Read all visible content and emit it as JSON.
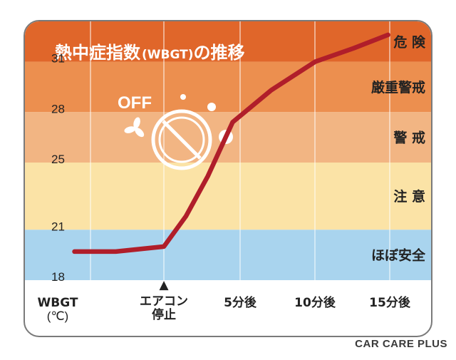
{
  "chart_data": {
    "type": "line",
    "title_main": "熱中症指数",
    "title_paren": "(WBGT)",
    "title_tail": "の推移",
    "x_axis_label_line1": "WBGT",
    "x_axis_label_line2": "(℃)",
    "categories": [
      {
        "label": "エアコン停止",
        "line1": "エアコン",
        "line2": "停止",
        "marker": "▲"
      },
      {
        "label": "5分後"
      },
      {
        "label": "10分後"
      },
      {
        "label": "15分後"
      }
    ],
    "y_ticks": [
      "31",
      "28",
      "25",
      "21",
      "18"
    ],
    "y_tick_values": [
      31,
      28,
      25,
      21,
      18
    ],
    "ylim": [
      18,
      33.4
    ],
    "bands": [
      {
        "label": "危 険",
        "from": 31,
        "to": 33.4,
        "color": "#e0662a"
      },
      {
        "label": "厳重警戒",
        "from": 28,
        "to": 31,
        "color": "#ec8f4f"
      },
      {
        "label": "警 戒",
        "from": 25,
        "to": 28,
        "color": "#f2b583"
      },
      {
        "label": "注 意",
        "from": 21,
        "to": 25,
        "color": "#fbe3a6"
      },
      {
        "label": "ほぼ安全",
        "from": 18,
        "to": 21,
        "color": "#a9d4ee"
      }
    ],
    "series": [
      {
        "color": "#b01e2a",
        "x": [
          -6.5,
          -3.5,
          0,
          1.6,
          3.2,
          5.0,
          7.8,
          11.0,
          13.8,
          16.3
        ],
        "y": [
          19.7,
          19.7,
          20.0,
          21.8,
          24.2,
          27.4,
          29.3,
          31.0,
          31.8,
          32.6
        ]
      }
    ],
    "icon": {
      "off_text": "OFF",
      "name": "aircon-off-icon"
    }
  },
  "watermark": "CAR CARE PLUS"
}
